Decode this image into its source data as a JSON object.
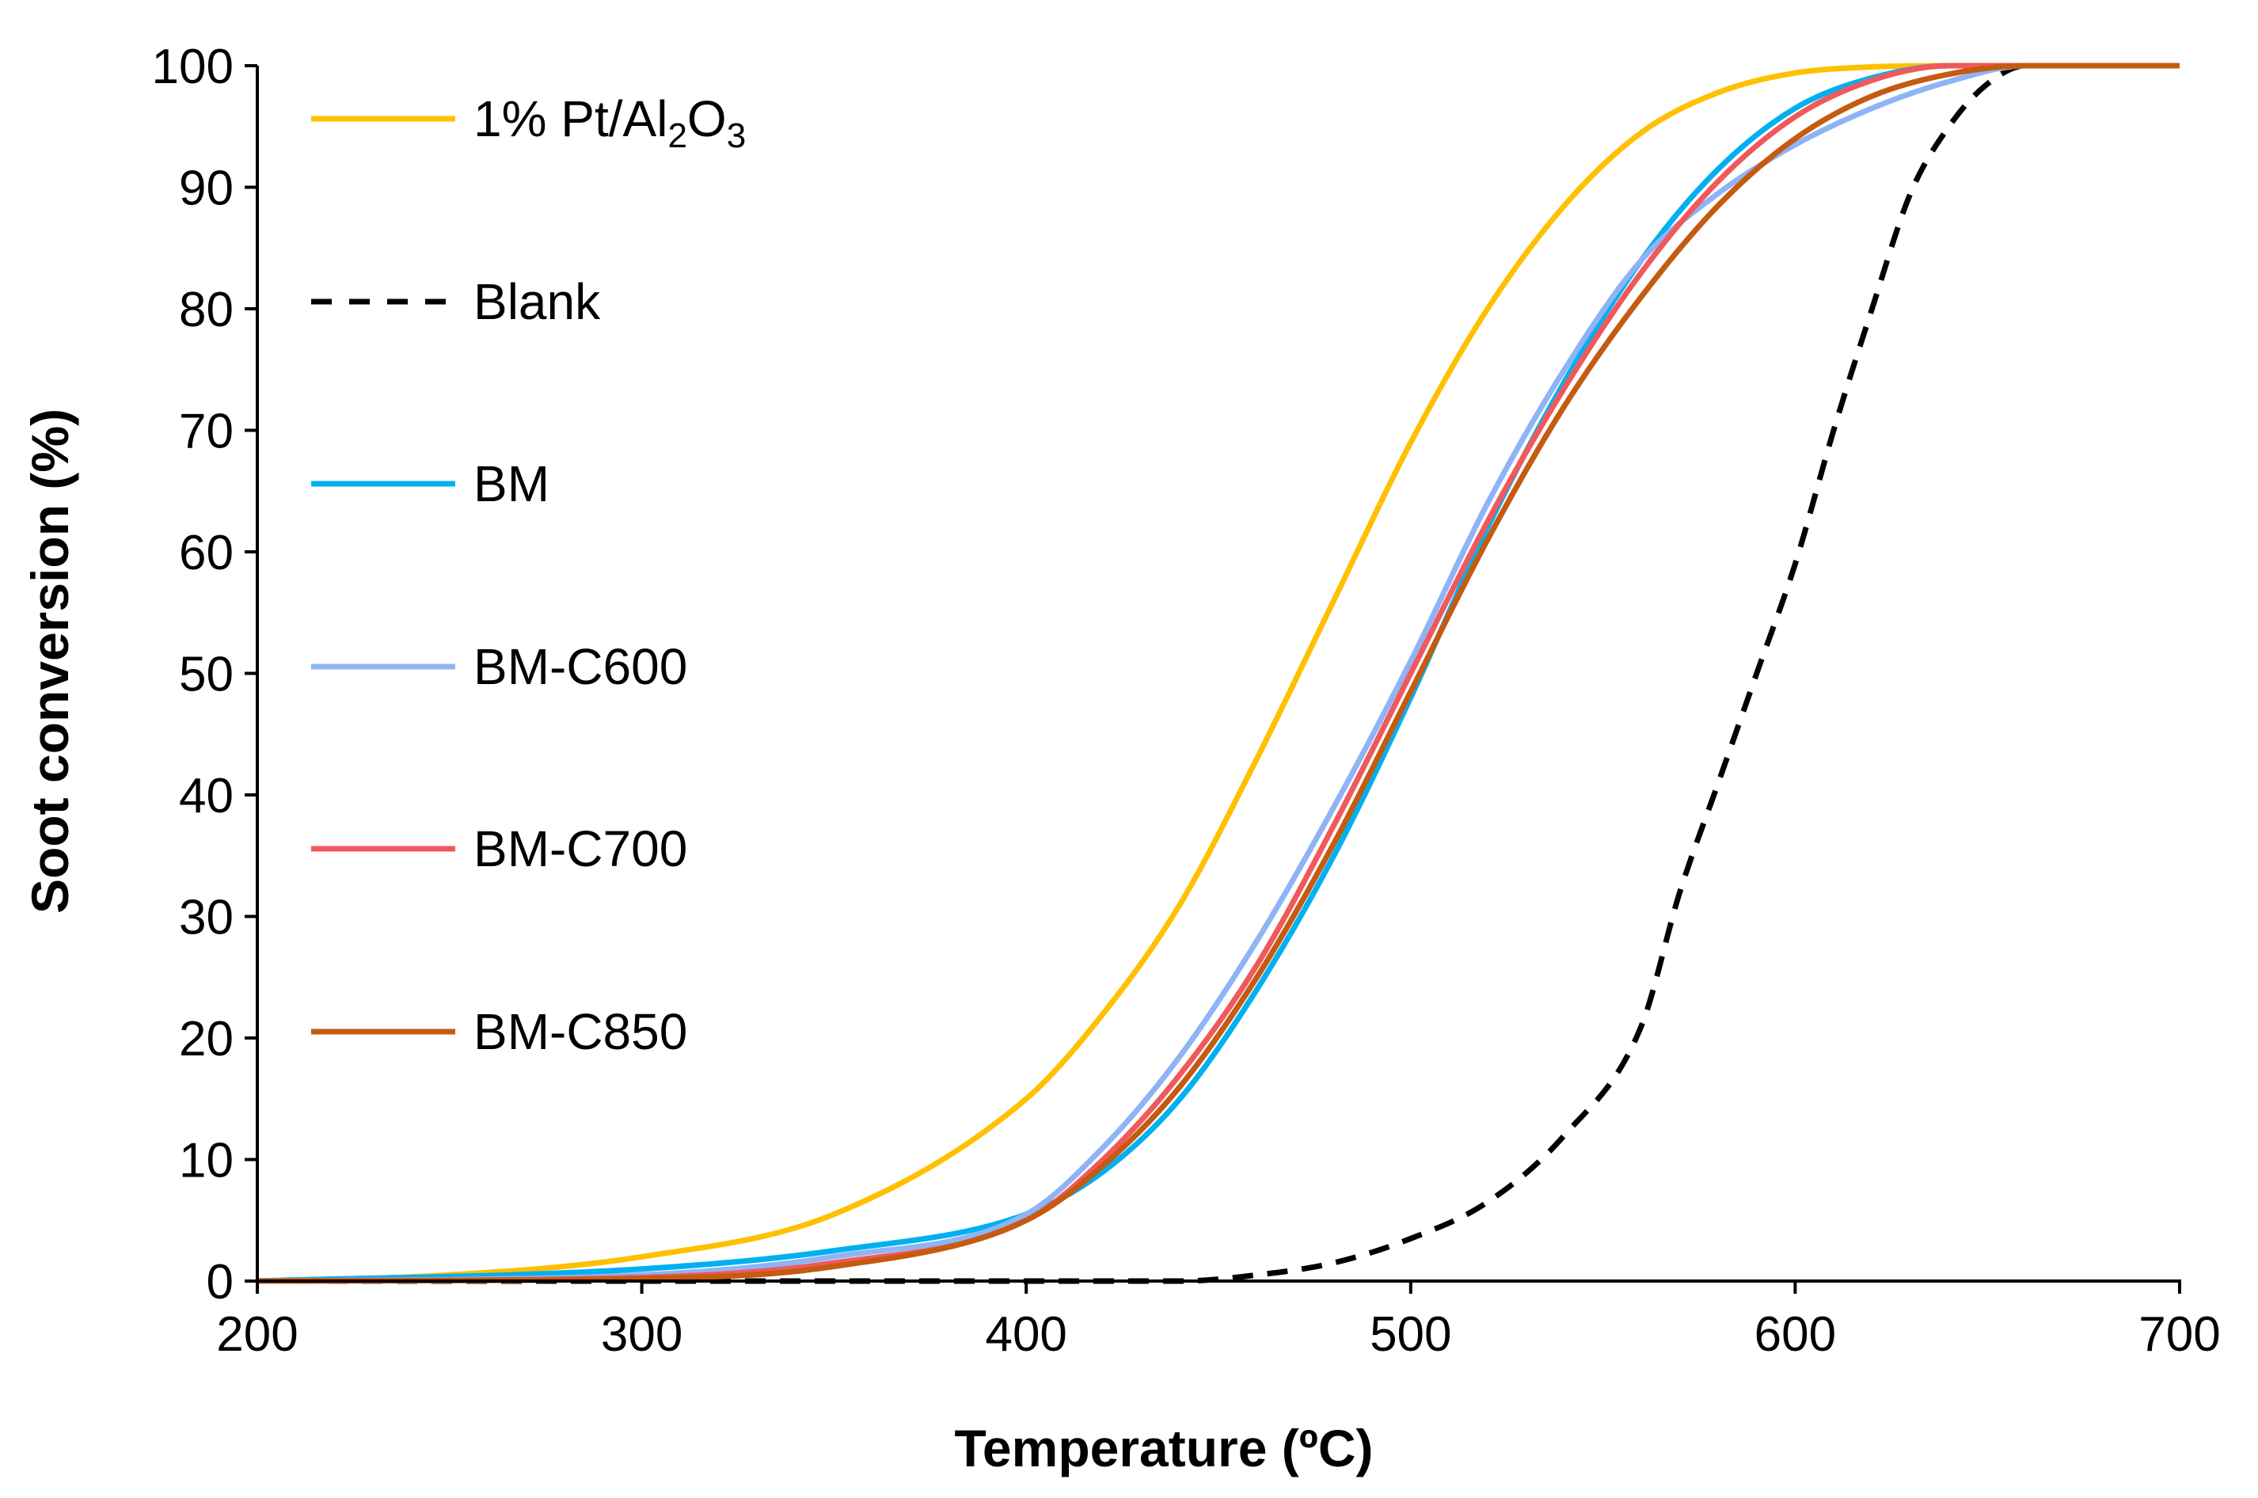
{
  "chart_data": {
    "type": "line",
    "title": "",
    "xlabel": "Temperature (ºC)",
    "ylabel": "Soot conversion (%)",
    "xlim": [
      200,
      700
    ],
    "ylim": [
      0,
      100
    ],
    "xticks": [
      200,
      300,
      400,
      500,
      600,
      700
    ],
    "yticks": [
      0,
      10,
      20,
      30,
      40,
      50,
      60,
      70,
      80,
      90,
      100
    ],
    "grid": false,
    "legend_position": "top-left",
    "series": [
      {
        "name": "1% Pt/Al2O3",
        "legend_parts": {
          "a": "1% Pt/Al",
          "sub1": "2",
          "b": "O",
          "sub2": "3"
        },
        "color": "#FFC000",
        "dash": "solid",
        "x": [
          200,
          250,
          300,
          350,
          400,
          420,
          440,
          460,
          480,
          500,
          520,
          540,
          560,
          580,
          600,
          620,
          640,
          660,
          700
        ],
        "y": [
          0,
          0.5,
          2,
          5.5,
          15,
          22,
          31,
          43,
          56,
          69,
          80,
          88.5,
          94.5,
          97.8,
          99.4,
          99.9,
          100,
          100,
          100
        ]
      },
      {
        "name": "Blank",
        "color": "#000000",
        "dash": "dashed",
        "x": [
          200,
          440,
          460,
          480,
          500,
          520,
          540,
          560,
          570,
          580,
          590,
          600,
          610,
          620,
          630,
          640,
          650,
          660,
          700
        ],
        "y": [
          0,
          0,
          0.5,
          1.5,
          3.5,
          6.5,
          12,
          21,
          32,
          41,
          50,
          59,
          70,
          80,
          89.5,
          95,
          98.5,
          100,
          100
        ]
      },
      {
        "name": "BM",
        "color": "#00B0F0",
        "dash": "solid",
        "x": [
          200,
          300,
          350,
          400,
          420,
          440,
          460,
          480,
          500,
          520,
          540,
          560,
          580,
          600,
          620,
          640,
          650,
          700
        ],
        "y": [
          0,
          1,
          2.5,
          5.5,
          9,
          15,
          24,
          35,
          48,
          62,
          74,
          84,
          91.5,
          96.5,
          99,
          100,
          100,
          100
        ]
      },
      {
        "name": "BM-C600",
        "color": "#8EB4F6",
        "dash": "solid",
        "x": [
          200,
          300,
          350,
          400,
          420,
          440,
          460,
          480,
          500,
          520,
          540,
          560,
          580,
          600,
          620,
          640,
          660,
          700
        ],
        "y": [
          0,
          0.5,
          2,
          5.5,
          11,
          18.5,
          28,
          39,
          51,
          64,
          75,
          84,
          89.5,
          93.5,
          96.5,
          98.7,
          100,
          100
        ]
      },
      {
        "name": "BM-C700",
        "color": "#F0595B",
        "dash": "solid",
        "x": [
          200,
          300,
          350,
          400,
          420,
          440,
          460,
          480,
          500,
          520,
          540,
          560,
          580,
          600,
          620,
          640,
          650,
          700
        ],
        "y": [
          0,
          0.3,
          1.5,
          5,
          10,
          17,
          26,
          37.5,
          50,
          62.5,
          73.5,
          83,
          90.5,
          95.8,
          98.8,
          100,
          100,
          100
        ]
      },
      {
        "name": "BM-C850",
        "color": "#C55A11",
        "dash": "solid",
        "x": [
          200,
          300,
          350,
          400,
          420,
          440,
          460,
          480,
          500,
          520,
          540,
          560,
          580,
          600,
          620,
          640,
          660,
          700
        ],
        "y": [
          0,
          0.2,
          1.2,
          5,
          9.5,
          16,
          25,
          36,
          48.5,
          61,
          72,
          81,
          88.5,
          94,
          97.5,
          99.3,
          100,
          100
        ]
      }
    ]
  }
}
